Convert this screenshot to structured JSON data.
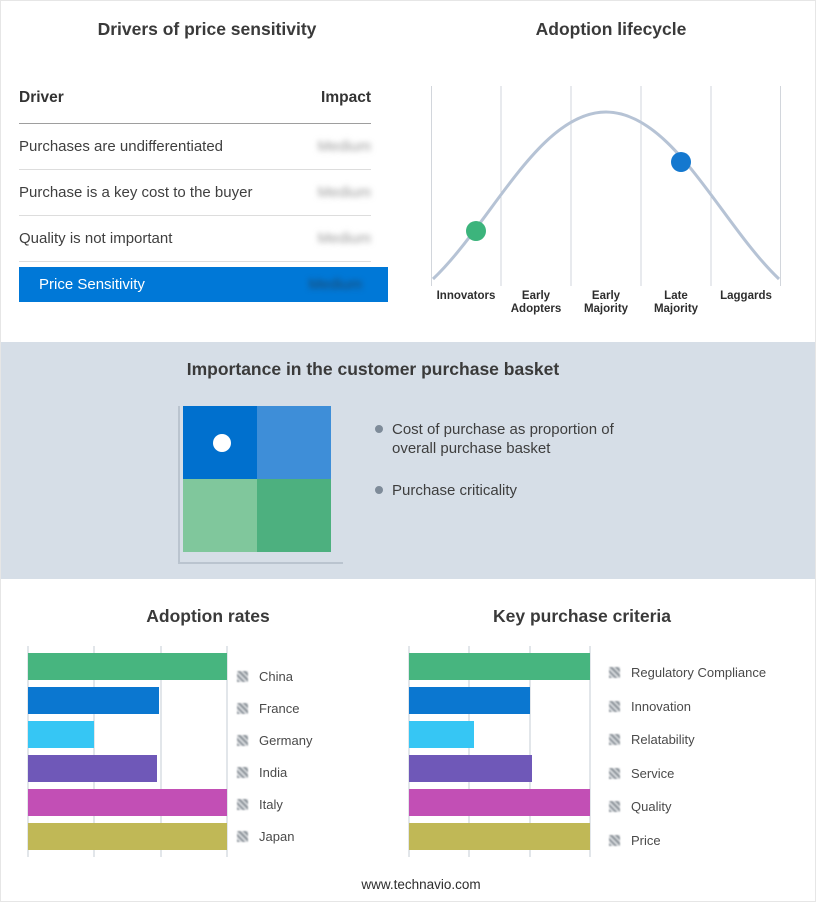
{
  "drivers_panel": {
    "title": "Drivers of price sensitivity",
    "header": {
      "driver": "Driver",
      "impact": "Impact"
    },
    "rows": [
      {
        "driver": "Purchases are undifferentiated",
        "impact": "Medium",
        "impact_redacted": true
      },
      {
        "driver": "Purchase is a key cost to the buyer",
        "impact": "Medium",
        "impact_redacted": true
      },
      {
        "driver": "Quality is not important",
        "impact": "Medium",
        "impact_redacted": true
      }
    ],
    "highlight_row": {
      "label": "Price Sensitivity",
      "impact": "Medium",
      "impact_redacted": true,
      "bg_color": "#0078d7"
    }
  },
  "lifecycle_panel": {
    "curve_color": "#b6c3d5",
    "markers": [
      {
        "name": "innovators-early-adopters-marker",
        "color": "#3cb47c"
      },
      {
        "name": "late-majority-marker",
        "color": "#1478cf"
      }
    ]
  },
  "basket_panel": {
    "title": "Importance in the customer purchase basket",
    "bg_color": "#d6dee7",
    "matrix_colors": {
      "top_left": "#0070ce",
      "top_right": "#3e8ed8",
      "bottom_left": "#80c79c",
      "bottom_right": "#4db07f"
    },
    "bullets": [
      "Cost of purchase as proportion of overall purchase basket",
      "Purchase criticality"
    ]
  },
  "footer": {
    "url": "www.technavio.com"
  },
  "chart_data": [
    {
      "type": "bar",
      "orientation": "horizontal",
      "title": "Adoption rates",
      "categories": [
        "China",
        "France",
        "Germany",
        "India",
        "Italy",
        "Japan"
      ],
      "values": [
        100,
        66,
        33,
        65,
        100,
        100
      ],
      "xlim": [
        0,
        100
      ],
      "grid": "vertical",
      "legend_position": "right",
      "colors": [
        "#47b57f",
        "#0b77d0",
        "#36c6f4",
        "#6f58b8",
        "#c24fb5",
        "#c0b856"
      ]
    },
    {
      "type": "bar",
      "orientation": "horizontal",
      "title": "Key purchase criteria",
      "categories": [
        "Regulatory Compliance",
        "Innovation",
        "Relatability",
        "Service",
        "Quality",
        "Price"
      ],
      "values": [
        100,
        67,
        36,
        68,
        100,
        100
      ],
      "xlim": [
        0,
        100
      ],
      "grid": "vertical",
      "legend_position": "right",
      "colors": [
        "#47b57f",
        "#0b77d0",
        "#36c6f4",
        "#6f58b8",
        "#c24fb5",
        "#c0b856"
      ]
    },
    {
      "type": "line",
      "title": "Adoption lifecycle",
      "categories": [
        "Innovators",
        "Early Adopters",
        "Early Majority",
        "Late Majority",
        "Laggards"
      ],
      "description": "Bell-shaped adoption curve over five adopter segments; green marker on the rising Innovators/Early Adopters slope, blue marker on the descending Late Majority slope",
      "grid": "vertical",
      "ylabel": "",
      "xlabel": ""
    }
  ]
}
